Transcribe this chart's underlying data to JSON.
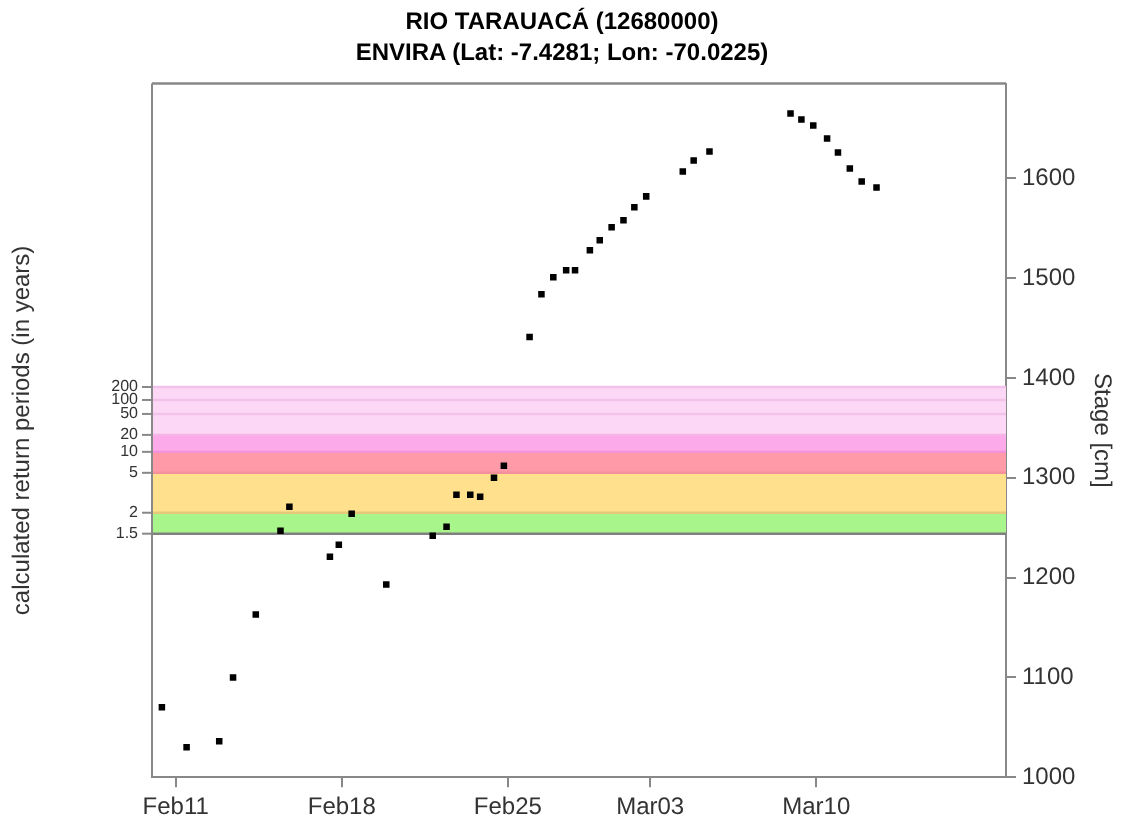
{
  "chart_data": {
    "type": "scatter",
    "title": "RIO TARAUACÁ (12680000)",
    "subtitle": "ENVIRA (Lat: -7.4281; Lon: -70.0225)",
    "ylabel": "Stage [cm]",
    "y2label": "calculated return periods (in years)",
    "xlim": [
      "--02-10",
      "--03-18"
    ],
    "xticks": [
      {
        "value": "--02-11",
        "label": "Feb11"
      },
      {
        "value": "--02-18",
        "label": "Feb18"
      },
      {
        "value": "--02-25",
        "label": "Feb25"
      },
      {
        "value": "--03-03",
        "label": "Mar03"
      },
      {
        "value": "--03-10",
        "label": "Mar10"
      }
    ],
    "ylim": [
      1000,
      1695
    ],
    "yticks": [
      1000,
      1100,
      1200,
      1300,
      1400,
      1500,
      1600
    ],
    "bands": [
      {
        "axis": "y",
        "from": 1244,
        "to": 1265,
        "color": "#a8f58c"
      },
      {
        "axis": "y",
        "from": 1265,
        "to": 1305,
        "color": "#ffe08c"
      },
      {
        "axis": "y",
        "from": 1305,
        "to": 1326,
        "color": "#ff9aa8"
      },
      {
        "axis": "y",
        "from": 1326,
        "to": 1343,
        "color": "#fdaaea"
      },
      {
        "axis": "y",
        "from": 1343,
        "to": 1391,
        "color": "#fdd8f6"
      }
    ],
    "ref_lines": [
      {
        "axis": "y",
        "value": 1244,
        "color": "#808080"
      },
      {
        "axis": "y",
        "value": 1265,
        "color": "#e6c87a"
      },
      {
        "axis": "y",
        "value": 1305,
        "color": "#f4909c"
      },
      {
        "axis": "y",
        "value": 1326,
        "color": "#f292dc"
      },
      {
        "axis": "y",
        "value": 1343,
        "color": "#f4b4e6"
      },
      {
        "axis": "y",
        "value": 1364,
        "color": "#f2c2ea"
      },
      {
        "axis": "y",
        "value": 1378,
        "color": "#f2c2ea"
      },
      {
        "axis": "y",
        "value": 1391,
        "color": "#f2c2ea"
      }
    ],
    "annotations": [
      "1.5",
      "2",
      "5",
      "10",
      "20",
      "50",
      "100",
      "200"
    ],
    "series": [
      {
        "color": "#000000",
        "x": [
          "--02-10T10:00",
          "--02-11T11:00",
          "--02-12T20:00",
          "--02-13T10:00",
          "--02-14T09:00",
          "--02-15T10:00",
          "--02-15T19:00",
          "--02-17T12:00",
          "--02-17T21:00",
          "--02-18T10:00",
          "--02-19T21:00",
          "--02-21T20:00",
          "--02-22T10:00",
          "--02-22T20:00",
          "--02-23T10:00",
          "--02-23T20:00",
          "--02-24T10:00",
          "--02-24T20:00",
          "--02-25T22:00",
          "--02-26T10:00",
          "--02-26T22:00",
          "--02-27T11:00",
          "--02-27T20:00",
          "--02-28T11:00",
          "--02-28T21:00",
          "--03-01T09:00",
          "--03-01T21:00",
          "--03-02T08:00",
          "--03-02T20:00",
          "--03-04T09:00",
          "--03-04T20:00",
          "--03-05T12:00",
          "--03-08T22:00",
          "--03-09T09:00",
          "--03-09T21:00",
          "--03-10T11:00",
          "--03-10T22:00",
          "--03-11T10:00",
          "--03-11T22:00",
          "--03-12T13:00"
        ],
        "values": [
          1070,
          1030,
          1036,
          1100,
          1163,
          1247,
          1271,
          1221,
          1233,
          1264,
          1193,
          1242,
          1251,
          1283,
          1283,
          1281,
          1300,
          1312,
          1441,
          1484,
          1501,
          1508,
          1508,
          1528,
          1538,
          1551,
          1558,
          1571,
          1582,
          1607,
          1618,
          1627,
          1665,
          1659,
          1653,
          1640,
          1626,
          1610,
          1597,
          1591
        ]
      }
    ],
    "marker": "square",
    "grid": false,
    "legend": false
  }
}
